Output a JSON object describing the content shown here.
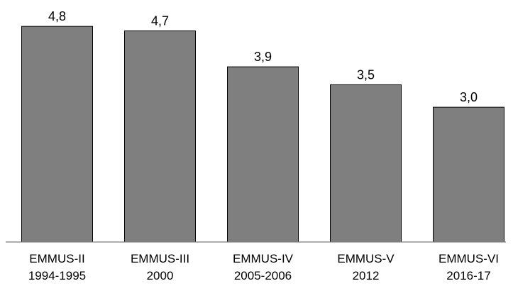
{
  "chart_data": {
    "type": "bar",
    "categories": [
      [
        "EMMUS-II",
        "1994-1995"
      ],
      [
        "EMMUS-III",
        "2000"
      ],
      [
        "EMMUS-IV",
        "2005-2006"
      ],
      [
        "EMMUS-V",
        "2012"
      ],
      [
        "EMMUS-VI",
        "2016-17"
      ]
    ],
    "values": [
      4.8,
      4.7,
      3.9,
      3.5,
      3.0
    ],
    "value_labels": [
      "4,8",
      "4,7",
      "3,9",
      "3,5",
      "3,0"
    ],
    "ylim": [
      0,
      5.15
    ],
    "grid": false,
    "legend": "none",
    "colors": {
      "bar_fill": "#7f7f7f",
      "bar_stroke": "#000000",
      "axis": "#7f7f7f"
    }
  }
}
